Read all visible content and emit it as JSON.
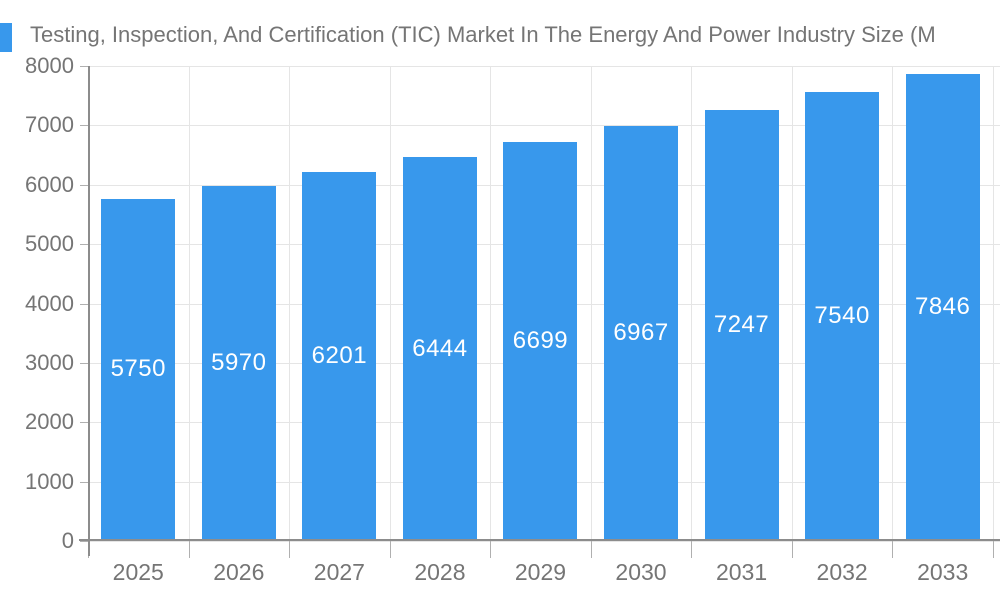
{
  "chart_data": {
    "type": "bar",
    "title": "Testing, Inspection, And Certification (TIC) Market In The Energy And Power Industry Size (M",
    "categories": [
      "2025",
      "2026",
      "2027",
      "2028",
      "2029",
      "2030",
      "2031",
      "2032",
      "2033"
    ],
    "values": [
      5750,
      5970,
      6201,
      6444,
      6699,
      6967,
      7247,
      7540,
      7846
    ],
    "xlabel": "",
    "ylabel": "",
    "ylim": [
      0,
      8000
    ],
    "yticks": [
      0,
      1000,
      2000,
      3000,
      4000,
      5000,
      6000,
      7000,
      8000
    ],
    "grid": true,
    "legend_position": "top-left",
    "value_labels_shown_inside_bars": true,
    "colors": {
      "bar": "#3898ec",
      "value_label": "#ffffff",
      "axis_text": "#757575",
      "gridline": "#e5e5e5",
      "axis_line": "#8c8c8c",
      "tick": "#b0b0b0"
    }
  }
}
